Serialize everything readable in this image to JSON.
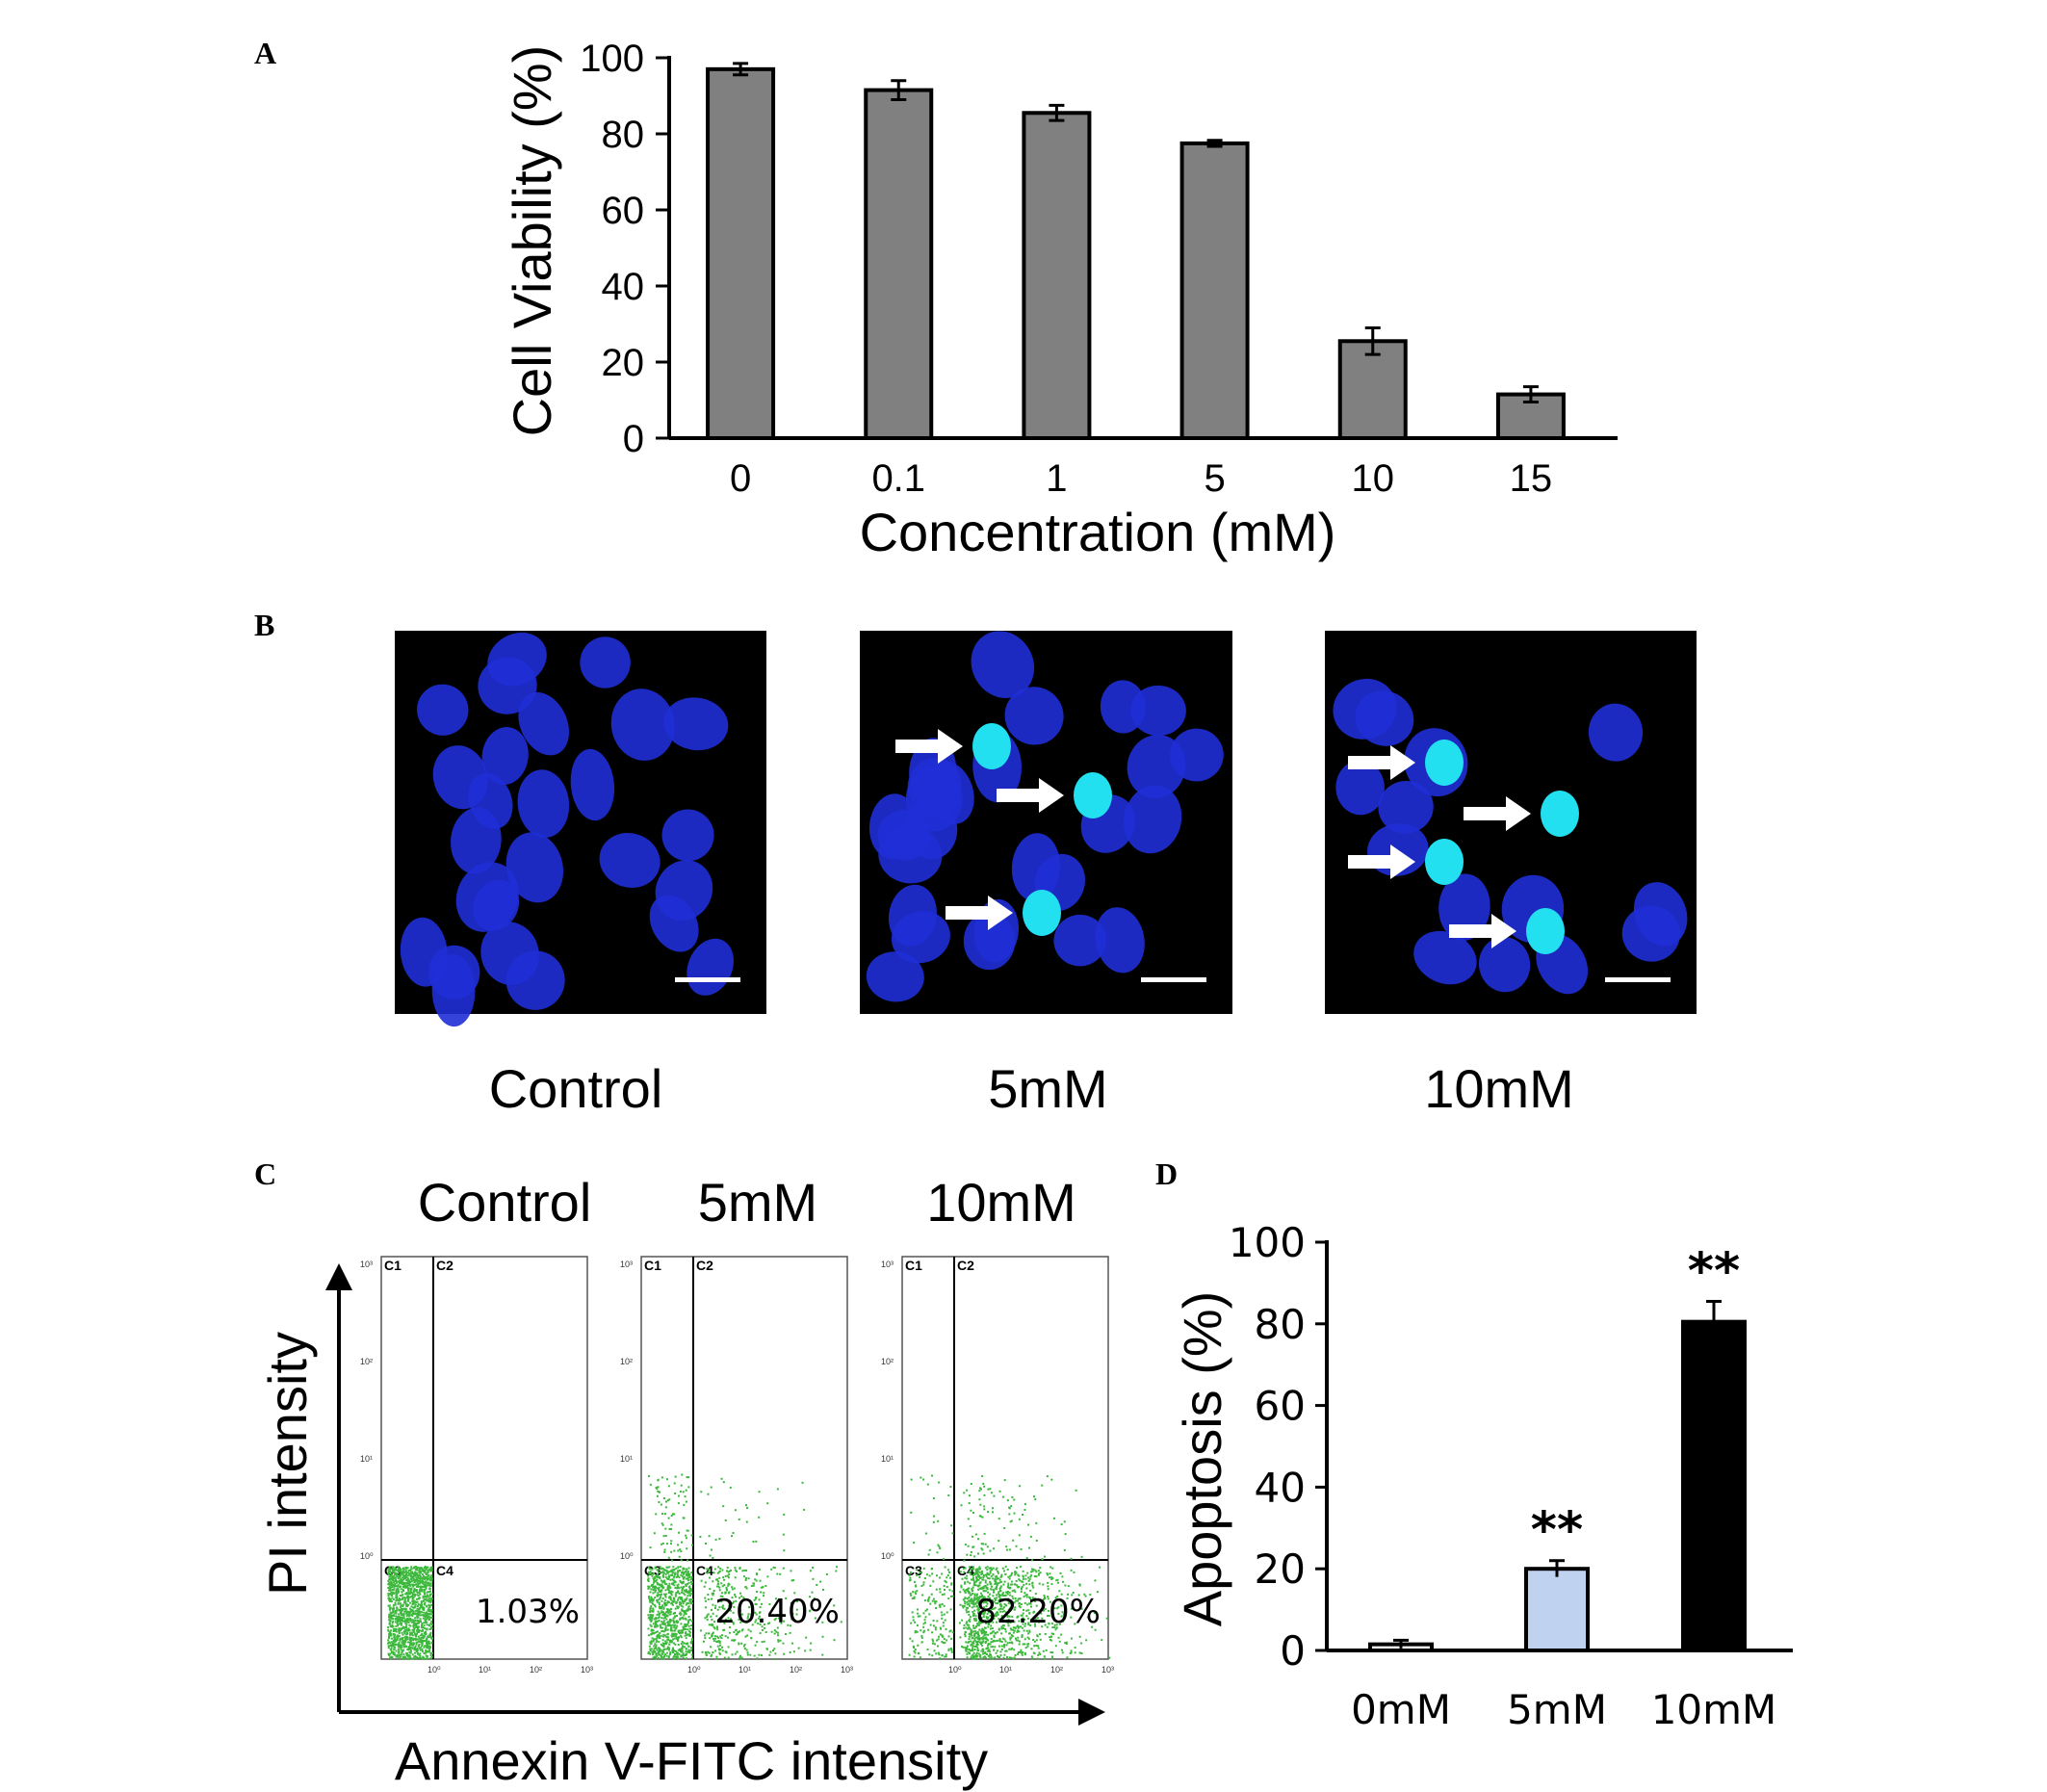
{
  "panels": {
    "A": "A",
    "B": "B",
    "C": "C",
    "D": "D"
  },
  "chart_data": [
    {
      "panel": "A",
      "type": "bar",
      "categories": [
        "0",
        "0.1",
        "1",
        "5",
        "10",
        "15"
      ],
      "values": [
        97,
        91.5,
        85.5,
        77.5,
        25.5,
        11.5
      ],
      "errors": [
        1.5,
        2.5,
        2,
        0.8,
        3.5,
        2
      ],
      "xlabel": "Concentration (mM)",
      "ylabel": "Cell Viability  (%)",
      "ylim": [
        0,
        100
      ],
      "yticks": [
        0,
        20,
        40,
        60,
        80,
        100
      ],
      "bar_color": "#808080"
    },
    {
      "panel": "D",
      "type": "bar",
      "categories": [
        "0mM",
        "5mM",
        "10mM"
      ],
      "values": [
        1.5,
        20,
        80.5
      ],
      "errors": [
        1,
        2,
        5
      ],
      "significance": [
        "",
        "**",
        "**"
      ],
      "ylabel": "Apoptosis (%)",
      "ylim": [
        0,
        100
      ],
      "yticks": [
        0,
        20,
        40,
        60,
        80,
        100
      ],
      "bar_colors": [
        "#ffffff",
        "#bfd3f0",
        "#000000"
      ]
    }
  ],
  "microscopy": {
    "captions": [
      "Control",
      "5mM",
      "10mM"
    ],
    "stain_color": "#1f2fd6",
    "apoptotic_color": "#22e0f0"
  },
  "flow": {
    "titles": [
      "Control",
      "5mM",
      "10mM"
    ],
    "percentages": [
      "1.03%",
      "20.40%",
      "82.20%"
    ],
    "quadrant_labels": [
      "C1",
      "C2",
      "C3",
      "C4"
    ],
    "y_ticks": [
      "10³",
      "10²",
      "10¹",
      "10⁰"
    ],
    "x_ticks": [
      "10⁰",
      "10¹",
      "10²",
      "10³"
    ],
    "ylabel": "PI intensity",
    "xlabel": "Annexin V-FITC  intensity",
    "dot_color": "#3cb83c"
  }
}
